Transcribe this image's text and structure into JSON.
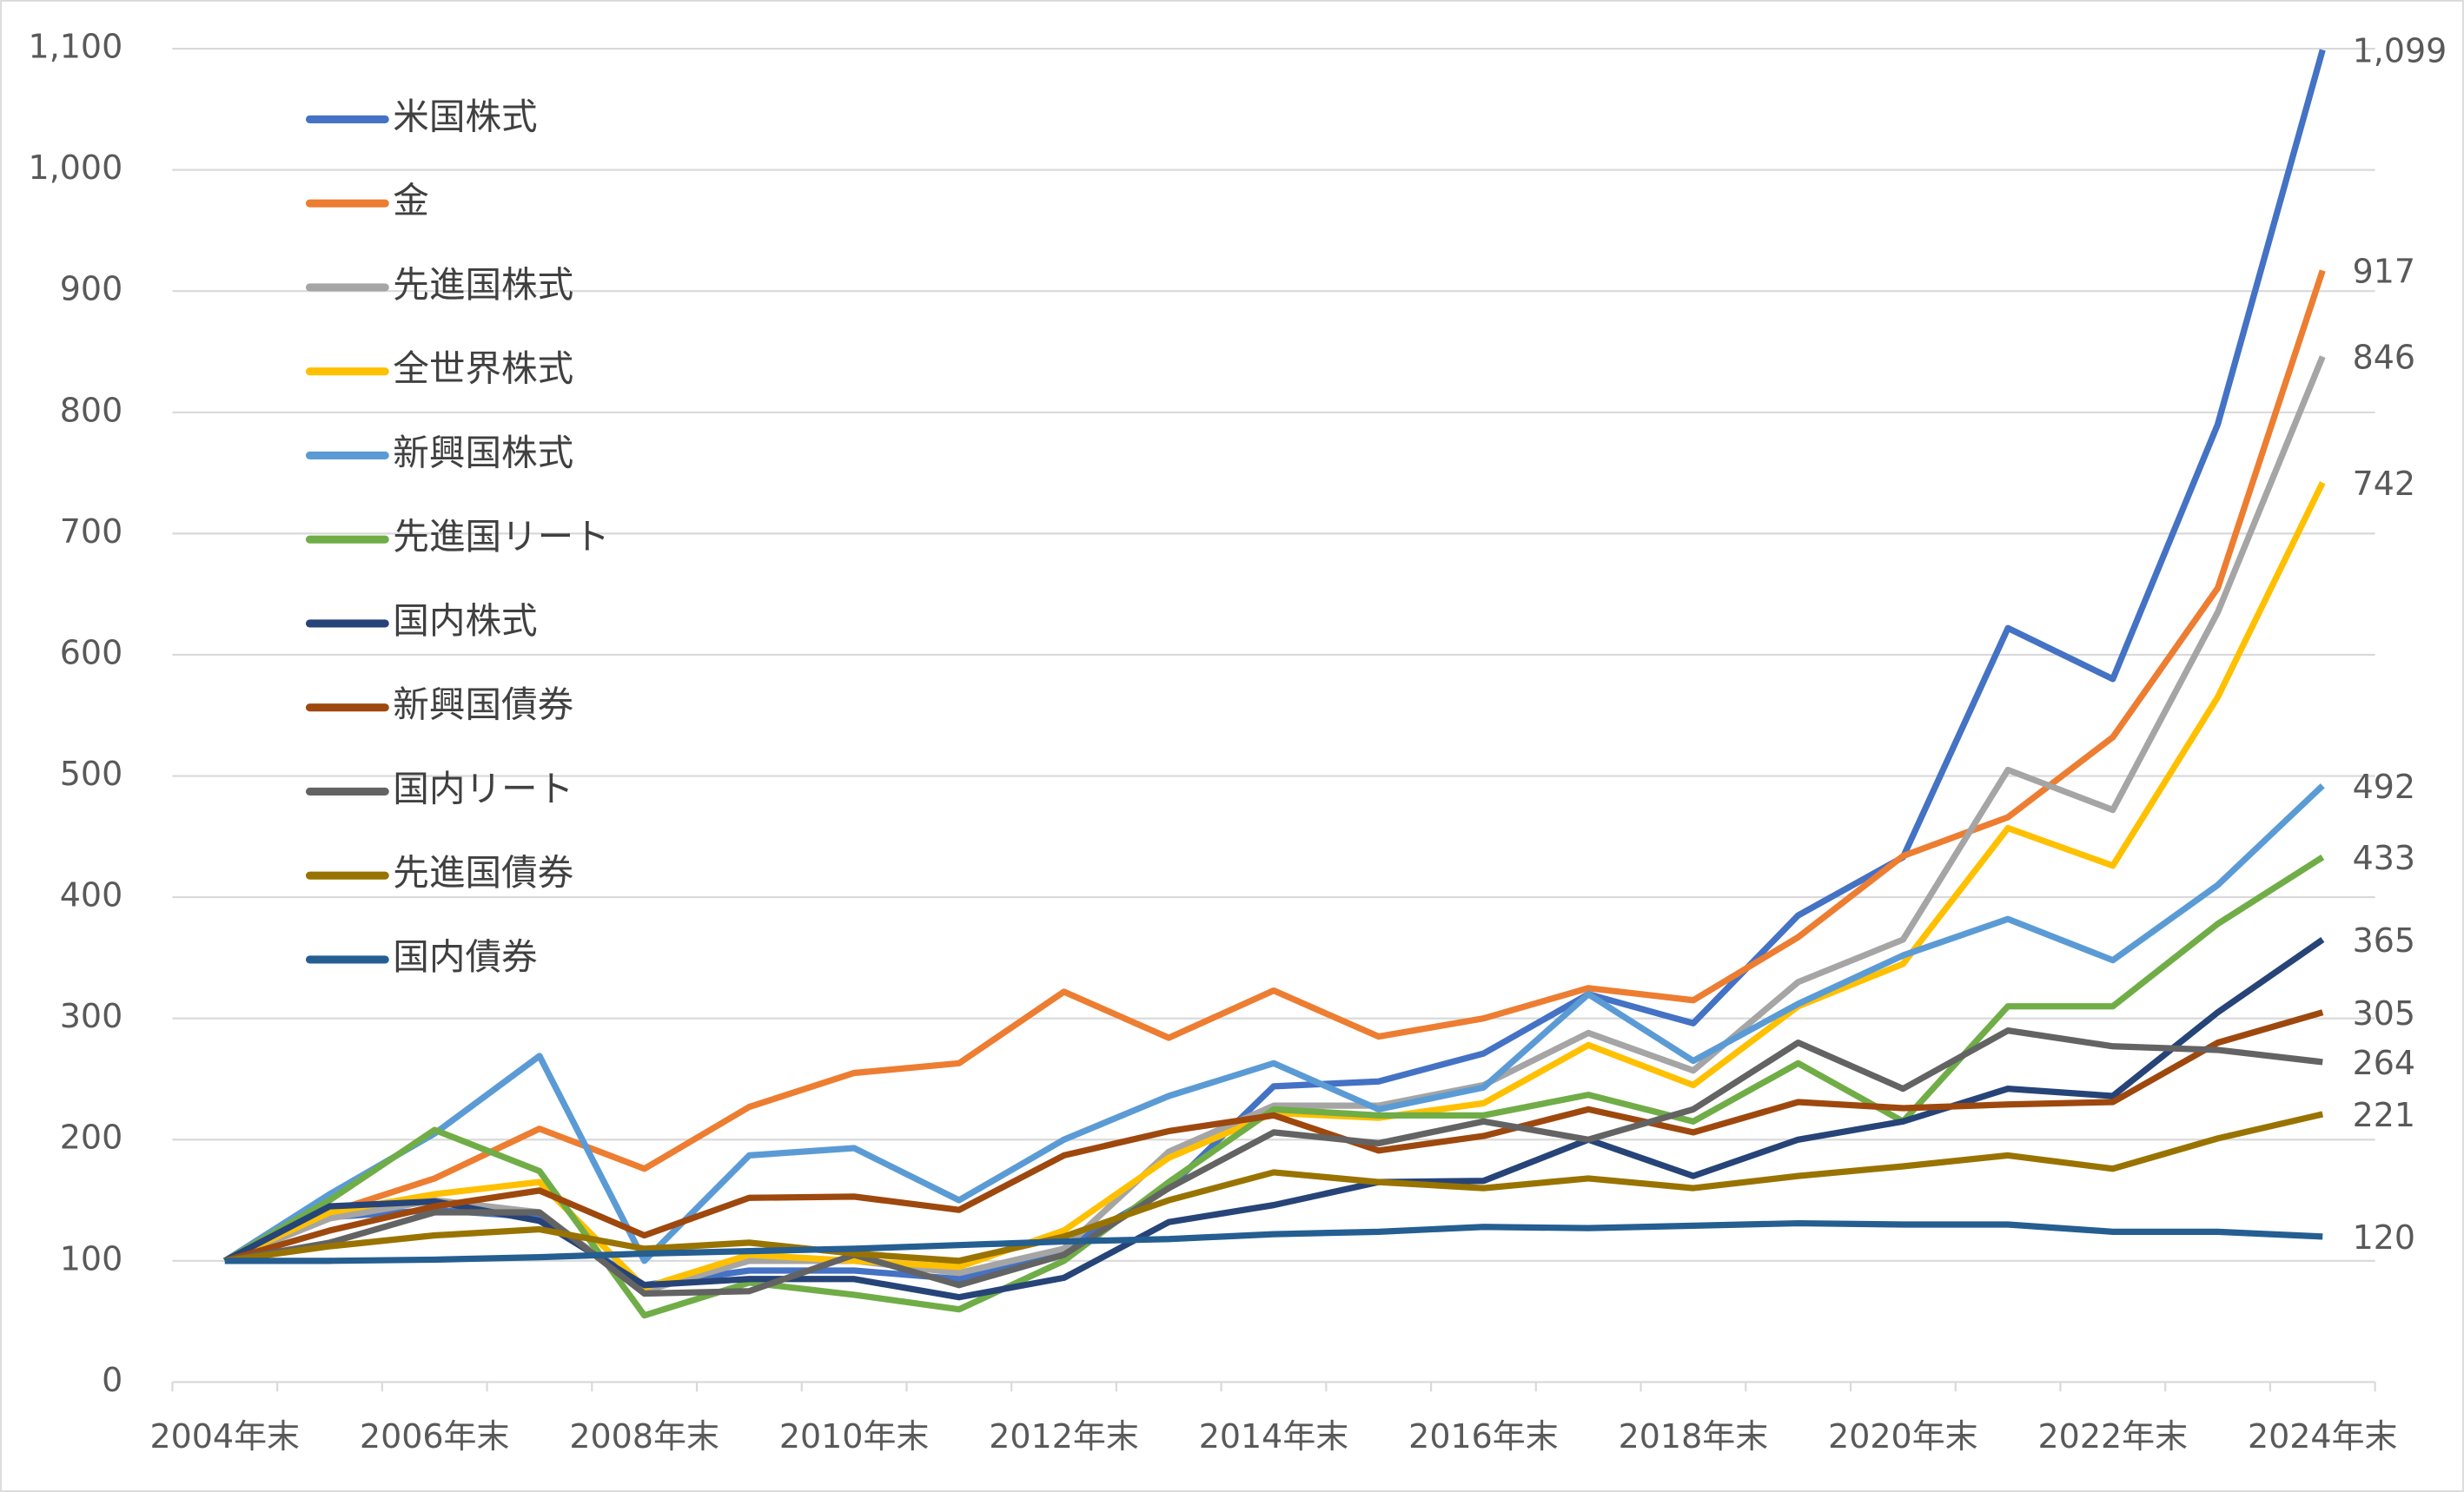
{
  "chart_data": {
    "type": "line",
    "categories": [
      "2004年末",
      null,
      "2006年末",
      null,
      "2008年末",
      null,
      "2010年末",
      null,
      "2012年末",
      null,
      "2014年末",
      null,
      "2016年末",
      null,
      "2018年末",
      null,
      "2020年末",
      null,
      "2022年末",
      null,
      "2024年末"
    ],
    "ylim": [
      0,
      1100
    ],
    "yticks": [
      0,
      100,
      200,
      300,
      400,
      500,
      600,
      700,
      800,
      900,
      {
        "value": 1000,
        "label": "1,000"
      },
      {
        "value": 1100,
        "label": "1,100"
      }
    ],
    "grid": true,
    "legend": "upper-left",
    "series": [
      {
        "name": "米国株式",
        "color": "#4472c4",
        "label_color": "#4472c4",
        "values": [
          100,
          136,
          142,
          136,
          80,
          92,
          92,
          85,
          110,
          160,
          244,
          248,
          271,
          320,
          296,
          385,
          433,
          622,
          580,
          790,
          1099
        ],
        "value_labels": [
          null,
          null,
          null,
          null,
          null,
          null,
          null,
          null,
          null,
          null,
          null,
          null,
          null,
          null,
          null,
          null,
          null,
          null,
          null,
          null,
          "1,099"
        ]
      },
      {
        "name": "金",
        "color": "#ed7d31",
        "label_color": "#ed7d31",
        "values": [
          100,
          140,
          168,
          209,
          176,
          227,
          255,
          263,
          322,
          284,
          323,
          285,
          300,
          325,
          315,
          367,
          434,
          466,
          532,
          655,
          917
        ]
      },
      {
        "name": "先進国株式",
        "color": "#a5a5a5",
        "label_color": "#404040",
        "values": [
          100,
          135,
          150,
          140,
          75,
          100,
          100,
          90,
          110,
          190,
          228,
          228,
          245,
          288,
          257,
          330,
          365,
          505,
          472,
          635,
          846
        ]
      },
      {
        "name": "全世界株式",
        "color": "#ffc000",
        "label_color": "#ffc000",
        "values": [
          100,
          140,
          155,
          165,
          78,
          105,
          100,
          95,
          125,
          185,
          222,
          218,
          230,
          278,
          245,
          310,
          345,
          457,
          426,
          565,
          742
        ]
      },
      {
        "name": "新興国株式",
        "color": "#5b9bd5",
        "label_color": "#4472c4",
        "values": [
          100,
          155,
          205,
          269,
          100,
          187,
          193,
          150,
          200,
          236,
          263,
          225,
          243,
          320,
          265,
          312,
          352,
          382,
          348,
          410,
          492
        ]
      },
      {
        "name": "先進国リート",
        "color": "#70ad47",
        "label_color": "#70ad47",
        "values": [
          100,
          150,
          208,
          174,
          55,
          82,
          72,
          60,
          100,
          165,
          225,
          220,
          220,
          237,
          215,
          263,
          215,
          310,
          310,
          378,
          433
        ]
      },
      {
        "name": "国内株式",
        "color": "#264478",
        "label_color": "#264478",
        "values": [
          100,
          145,
          149,
          133,
          80,
          85,
          85,
          70,
          86,
          132,
          146,
          165,
          166,
          200,
          170,
          200,
          215,
          242,
          236,
          305,
          365
        ]
      },
      {
        "name": "新興国債券",
        "color": "#9e480e",
        "label_color": "#c00000",
        "values": [
          100,
          125,
          145,
          158,
          121,
          152,
          153,
          142,
          187,
          207,
          220,
          191,
          203,
          225,
          206,
          231,
          226,
          229,
          231,
          280,
          305
        ]
      },
      {
        "name": "国内リート",
        "color": "#636363",
        "label_color": "#44546a",
        "values": [
          100,
          115,
          140,
          140,
          73,
          75,
          105,
          80,
          105,
          160,
          206,
          197,
          215,
          200,
          225,
          280,
          242,
          290,
          277,
          274,
          264
        ]
      },
      {
        "name": "先進国債券",
        "color": "#997300",
        "label_color": "#404040",
        "values": [
          100,
          112,
          121,
          126,
          110,
          115,
          106,
          100,
          120,
          150,
          173,
          165,
          160,
          168,
          160,
          170,
          178,
          187,
          176,
          201,
          221
        ]
      },
      {
        "name": "国内債券",
        "color": "#255e91",
        "label_color": "#264478",
        "values": [
          100,
          100,
          101,
          103,
          106,
          108,
          110,
          113,
          116,
          118,
          122,
          124,
          128,
          127,
          129,
          131,
          130,
          130,
          124,
          124,
          120
        ]
      }
    ]
  }
}
